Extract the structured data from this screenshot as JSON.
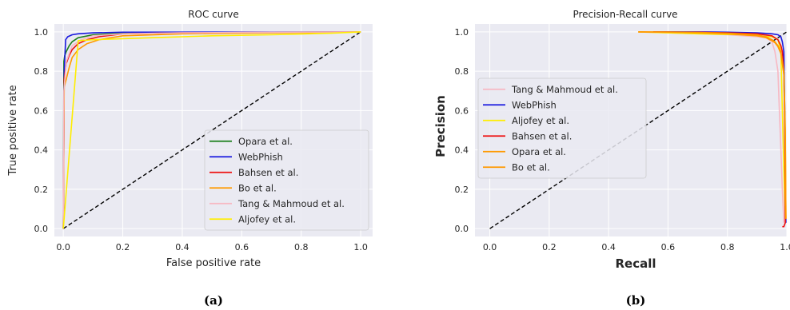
{
  "chart_data": [
    {
      "type": "line",
      "panel_label": "(a)",
      "title": "ROC curve",
      "xlabel": "False positive rate",
      "ylabel": "True positive rate",
      "xlim": [
        -0.03,
        1.04
      ],
      "ylim": [
        -0.04,
        1.04
      ],
      "xticks": [
        0.0,
        0.2,
        0.4,
        0.6,
        0.8,
        1.0
      ],
      "yticks": [
        0.0,
        0.2,
        0.4,
        0.6,
        0.8,
        1.0
      ],
      "xtick_labels": [
        "0.0",
        "0.2",
        "0.4",
        "0.6",
        "0.8",
        "1.0"
      ],
      "ytick_labels": [
        "0.0",
        "0.2",
        "0.4",
        "0.6",
        "0.8",
        "1.0"
      ],
      "grid": true,
      "legend_position": "lower-right",
      "reference_line": {
        "color": "#000000",
        "style": "dashed",
        "x": [
          0,
          1
        ],
        "y": [
          0,
          1
        ]
      },
      "series": [
        {
          "name": "Opara et al.",
          "color": "#1b7f1b",
          "x": [
            0,
            0.002,
            0.005,
            0.01,
            0.02,
            0.03,
            0.05,
            0.1,
            0.2,
            0.4,
            1.0
          ],
          "y": [
            0,
            0.85,
            0.88,
            0.9,
            0.93,
            0.95,
            0.97,
            0.985,
            0.993,
            0.997,
            1.0
          ]
        },
        {
          "name": "WebPhish",
          "color": "#1a1adf",
          "x": [
            0,
            0.003,
            0.008,
            0.015,
            0.03,
            0.05,
            0.1,
            0.2,
            1.0
          ],
          "y": [
            0,
            0.8,
            0.96,
            0.975,
            0.985,
            0.99,
            0.995,
            0.998,
            1.0
          ]
        },
        {
          "name": "Bahsen et al.",
          "color": "#ee1111",
          "x": [
            0,
            0.003,
            0.01,
            0.02,
            0.03,
            0.05,
            0.08,
            0.12,
            0.2,
            0.4,
            1.0
          ],
          "y": [
            0,
            0.76,
            0.84,
            0.88,
            0.91,
            0.94,
            0.96,
            0.975,
            0.99,
            0.995,
            1.0
          ]
        },
        {
          "name": "Bo et al.",
          "color": "#ff9900",
          "x": [
            0,
            0.003,
            0.01,
            0.02,
            0.03,
            0.05,
            0.08,
            0.12,
            0.2,
            0.4,
            1.0
          ],
          "y": [
            0,
            0.72,
            0.76,
            0.82,
            0.87,
            0.91,
            0.94,
            0.96,
            0.98,
            0.99,
            1.0
          ]
        },
        {
          "name": "Tang & Mahmoud et al.",
          "color": "#f7b8c3",
          "x": [
            0,
            0.002,
            0.01,
            0.03,
            0.06,
            0.1,
            0.2,
            0.4,
            0.6,
            0.8,
            1.0
          ],
          "y": [
            0,
            0.7,
            0.85,
            0.93,
            0.96,
            0.98,
            0.99,
            0.995,
            0.997,
            0.999,
            1.0
          ]
        },
        {
          "name": "Aljofey et al.",
          "color": "#ffee00",
          "x": [
            0,
            0.05,
            0.1,
            0.3,
            0.5,
            0.7,
            0.9,
            1.0
          ],
          "y": [
            0,
            0.955,
            0.96,
            0.97,
            0.98,
            0.985,
            0.993,
            1.0
          ]
        }
      ]
    },
    {
      "type": "line",
      "panel_label": "(b)",
      "title": "Precision-Recall curve",
      "xlabel": "Recall",
      "ylabel": "Precision",
      "xlim": [
        -0.05,
        1.0
      ],
      "ylim": [
        -0.04,
        1.04
      ],
      "xticks": [
        0.0,
        0.2,
        0.4,
        0.6,
        0.8,
        1.0
      ],
      "yticks": [
        0.0,
        0.2,
        0.4,
        0.6,
        0.8,
        1.0
      ],
      "xtick_labels": [
        "0.0",
        "0.2",
        "0.4",
        "0.6",
        "0.8",
        "1.0"
      ],
      "ytick_labels": [
        "0.0",
        "0.2",
        "0.4",
        "0.6",
        "0.8",
        "1.0"
      ],
      "grid": true,
      "legend_position": "center-left",
      "reference_line": {
        "color": "#000000",
        "style": "dashed",
        "x": [
          0,
          1
        ],
        "y": [
          0,
          1
        ]
      },
      "series": [
        {
          "name": "Tang & Mahmoud et al.",
          "color": "#f7b8c3",
          "x": [
            0.5,
            0.6,
            0.7,
            0.8,
            0.9,
            0.93,
            0.95,
            0.96,
            0.97,
            0.975,
            0.98,
            0.985,
            0.99
          ],
          "y": [
            1.0,
            0.995,
            0.99,
            0.985,
            0.975,
            0.97,
            0.95,
            0.9,
            0.8,
            0.6,
            0.4,
            0.2,
            0.03
          ]
        },
        {
          "name": "WebPhish",
          "color": "#1a1adf",
          "x": [
            0.55,
            0.7,
            0.8,
            0.9,
            0.95,
            0.97,
            0.98,
            0.985,
            0.99,
            0.993,
            0.995,
            0.997
          ],
          "y": [
            1.0,
            1.0,
            0.998,
            0.995,
            0.99,
            0.985,
            0.975,
            0.95,
            0.9,
            0.6,
            0.2,
            0.03
          ]
        },
        {
          "name": "Aljofey et al.",
          "color": "#ffee00",
          "x": [
            0.5,
            0.7,
            0.85,
            0.9,
            0.95,
            0.97,
            0.98,
            0.985,
            0.99,
            0.995
          ],
          "y": [
            1.0,
            0.99,
            0.985,
            0.98,
            0.975,
            0.96,
            0.9,
            0.6,
            0.3,
            0.05
          ]
        },
        {
          "name": "Bahsen et al.",
          "color": "#ee1111",
          "x": [
            0.55,
            0.7,
            0.8,
            0.9,
            0.95,
            0.97,
            0.98,
            0.985,
            0.99,
            0.993,
            0.995,
            0.995,
            0.99,
            0.985
          ],
          "y": [
            1.0,
            0.998,
            0.995,
            0.99,
            0.98,
            0.96,
            0.93,
            0.9,
            0.8,
            0.5,
            0.2,
            0.03,
            0.01,
            0.01
          ]
        },
        {
          "name": "Opara et al.",
          "color": "#ff9900",
          "x": [
            0.5,
            0.6,
            0.7,
            0.8,
            0.9,
            0.93,
            0.95,
            0.96,
            0.97,
            0.98,
            0.99,
            0.995,
            0.997
          ],
          "y": [
            1.0,
            0.999,
            0.997,
            0.993,
            0.985,
            0.975,
            0.96,
            0.95,
            0.93,
            0.9,
            0.8,
            0.5,
            0.05
          ]
        },
        {
          "name": "Bo et al.",
          "color": "#ff9900",
          "x": [
            0.5,
            0.6,
            0.7,
            0.8,
            0.9,
            0.93,
            0.95,
            0.96,
            0.97,
            0.98,
            0.99,
            0.995,
            0.997
          ],
          "y": [
            1.0,
            0.998,
            0.995,
            0.99,
            0.98,
            0.97,
            0.955,
            0.945,
            0.925,
            0.89,
            0.78,
            0.45,
            0.05
          ]
        }
      ]
    }
  ]
}
